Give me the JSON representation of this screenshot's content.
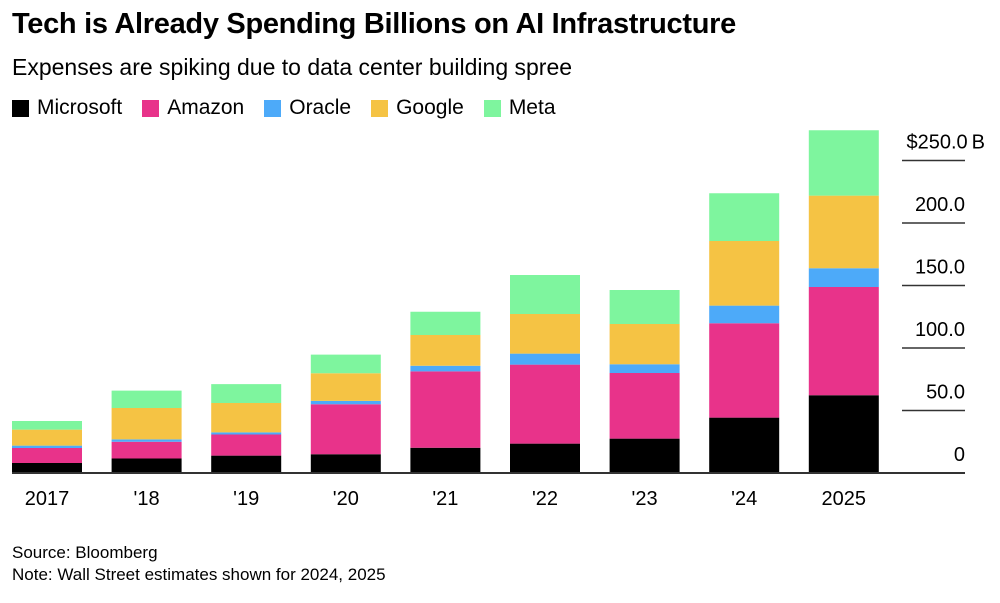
{
  "header": {
    "title": "Tech is Already Spending Billions on AI Infrastructure",
    "subtitle": "Expenses are spiking due to data center building spree"
  },
  "footer": {
    "source": "Source: Bloomberg",
    "note": "Note: Wall Street estimates shown for 2024, 2025"
  },
  "chart_data": {
    "type": "bar",
    "stacked": true,
    "title": "Tech is Already Spending Billions on AI Infrastructure",
    "subtitle": "Expenses are spiking due to data center building spree",
    "xlabel": "",
    "ylabel": "",
    "categories": [
      "2017",
      "'18",
      "'19",
      "'20",
      "'21",
      "'22",
      "'23",
      "'24",
      "2025"
    ],
    "series": [
      {
        "name": "Microsoft",
        "color": "#000000",
        "values": [
          8.0,
          11.6,
          13.9,
          15.0,
          20.2,
          23.5,
          27.5,
          44.3,
          62.2
        ]
      },
      {
        "name": "Amazon",
        "color": "#E8338A",
        "values": [
          12.0,
          13.4,
          16.9,
          40.0,
          61.1,
          63.2,
          52.5,
          75.5,
          86.6
        ]
      },
      {
        "name": "Oracle",
        "color": "#4DAAF9",
        "values": [
          1.9,
          1.9,
          1.7,
          2.7,
          4.5,
          8.8,
          7.0,
          14.1,
          15.0
        ]
      },
      {
        "name": "Google",
        "color": "#F5C344",
        "values": [
          12.8,
          25.1,
          23.5,
          22.1,
          24.6,
          31.7,
          32.2,
          51.7,
          58.1
        ]
      },
      {
        "name": "Meta",
        "color": "#7EF59E",
        "values": [
          6.9,
          13.9,
          15.1,
          14.9,
          18.6,
          31.2,
          27.2,
          38.2,
          52.3
        ]
      }
    ],
    "y_ticks": [
      0,
      50,
      100,
      150,
      200,
      250
    ],
    "y_tick_labels": [
      "0",
      "50.0",
      "100.0",
      "150.0",
      "200.0",
      "$250.0 B"
    ],
    "ylim": [
      0,
      250
    ],
    "y_axis_side": "right",
    "grid": true,
    "legend": {
      "placement": "top-left",
      "entries": [
        "Microsoft",
        "Amazon",
        "Oracle",
        "Google",
        "Meta"
      ]
    }
  }
}
